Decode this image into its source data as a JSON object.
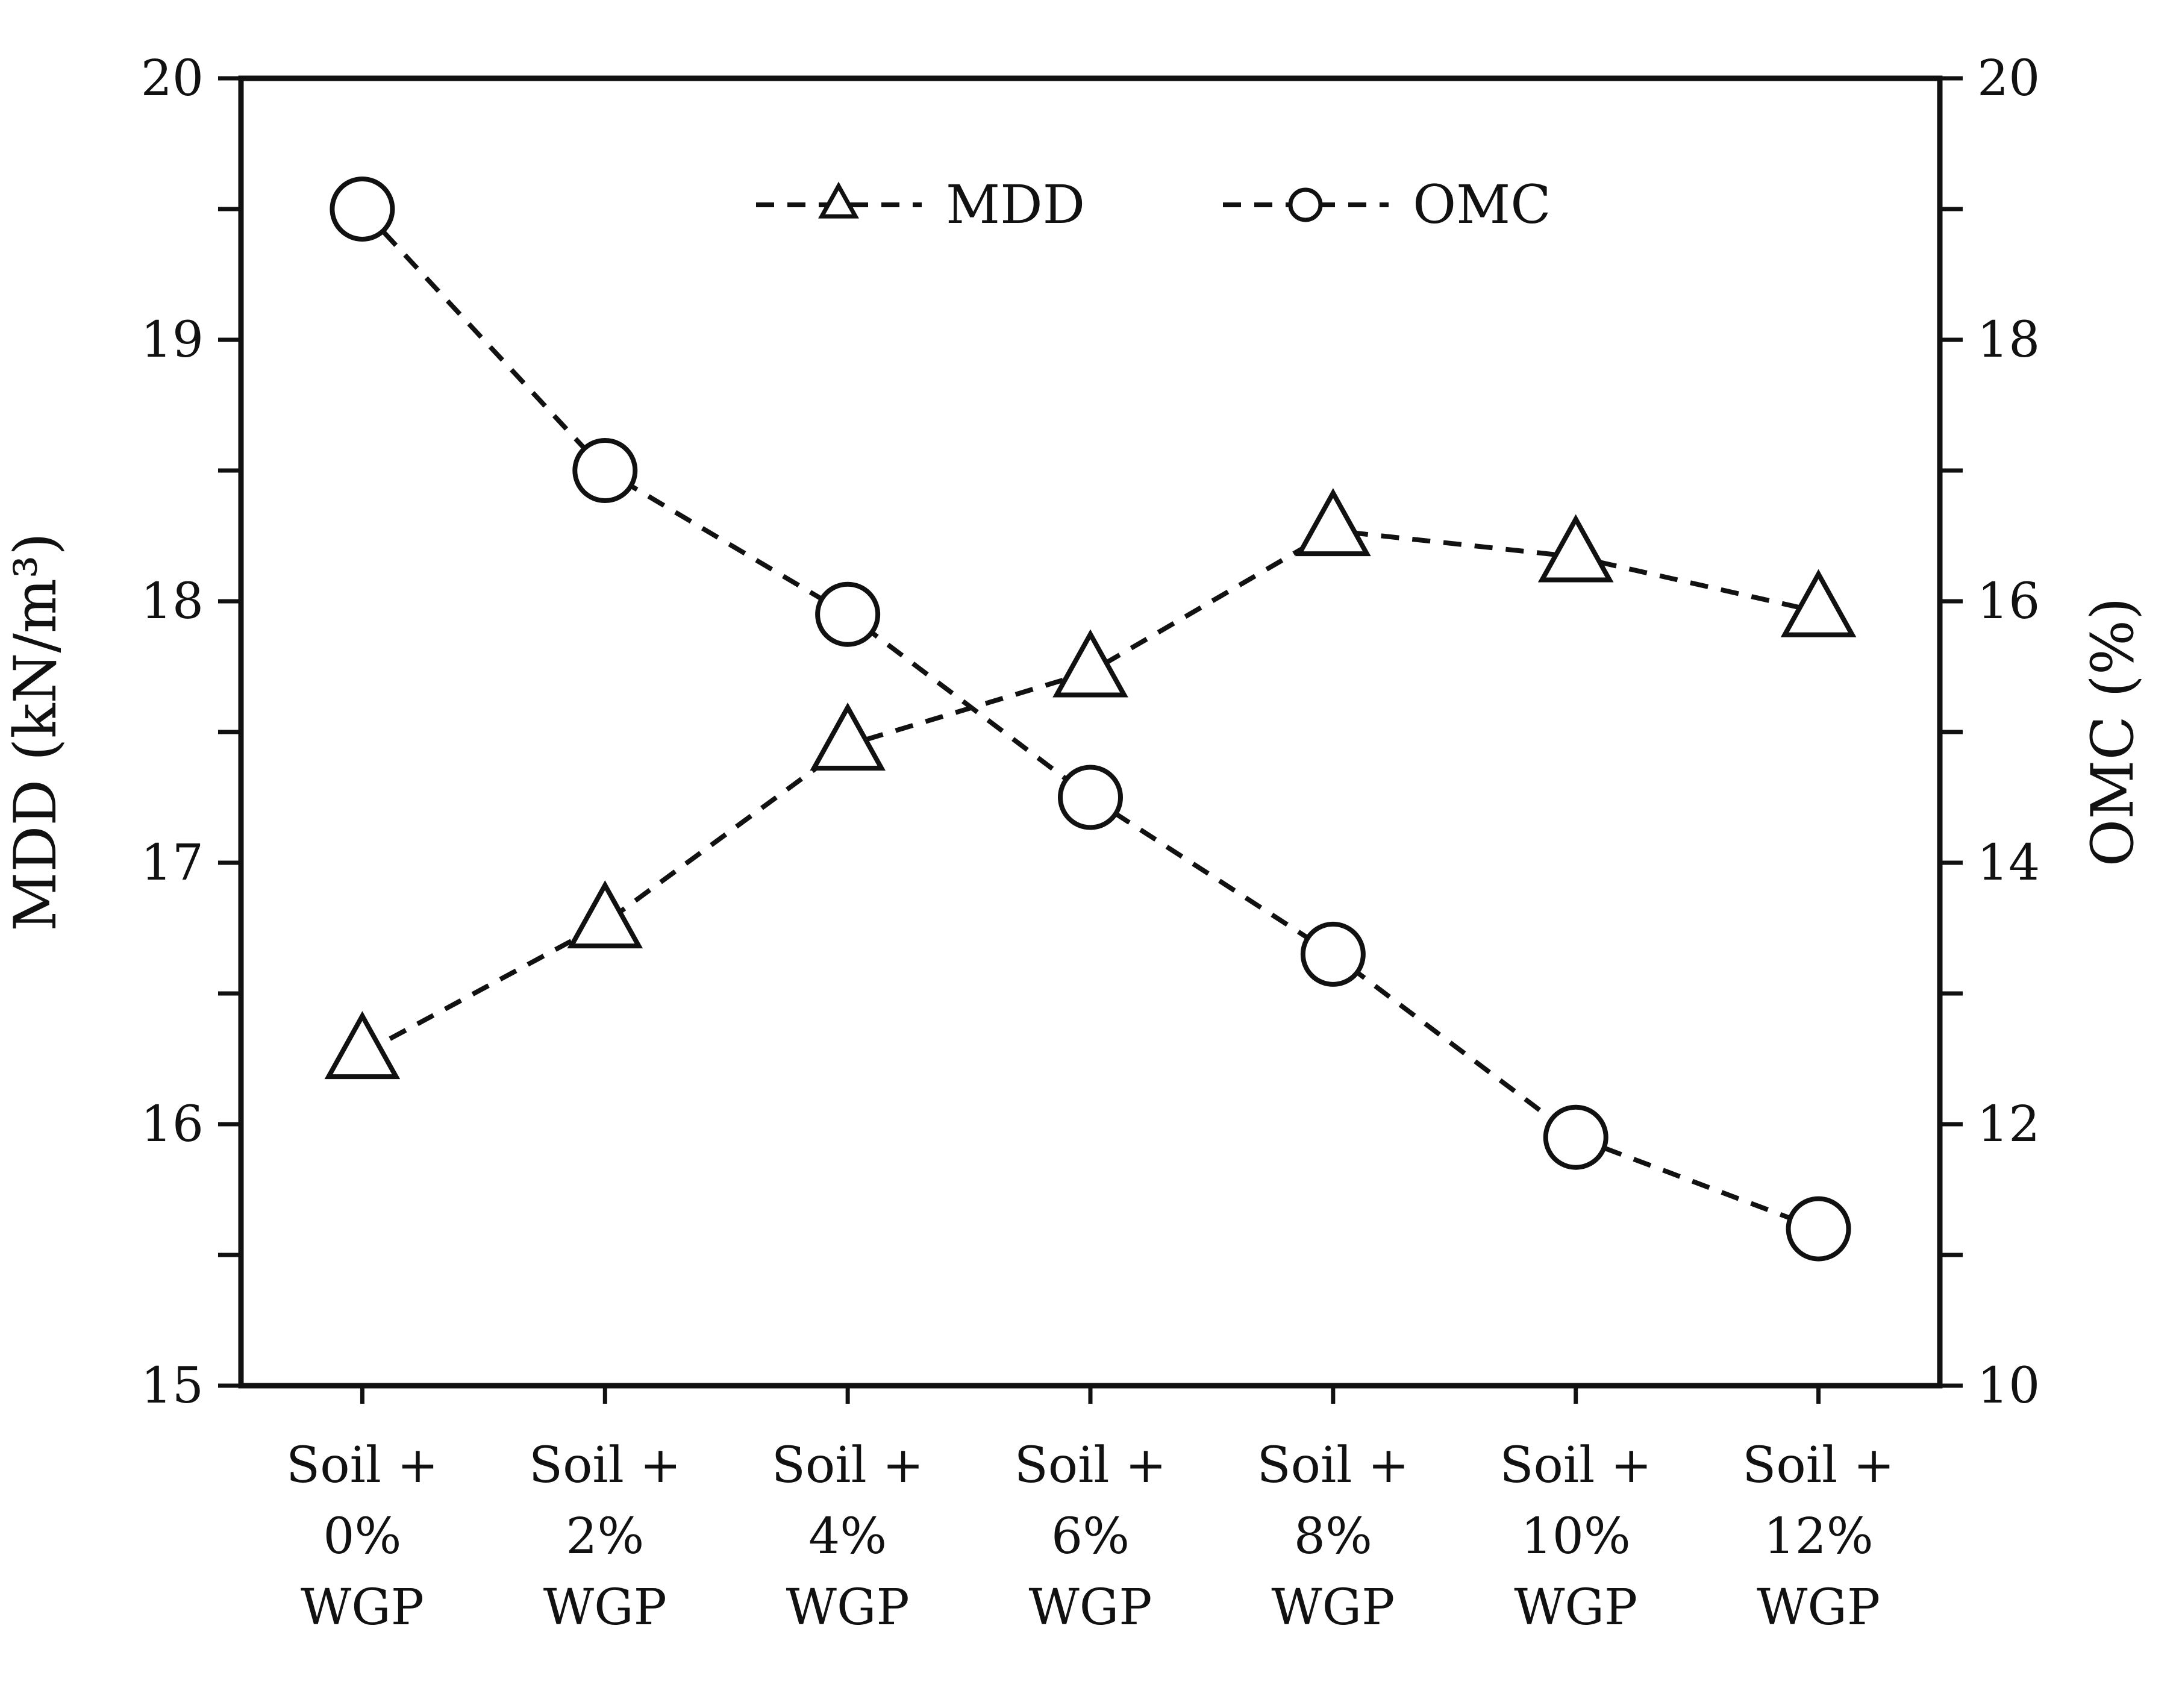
{
  "chart_data": {
    "type": "line",
    "categories": [
      [
        "Soil +",
        "0%",
        "WGP"
      ],
      [
        "Soil +",
        "2%",
        "WGP"
      ],
      [
        "Soil +",
        "4%",
        "WGP"
      ],
      [
        "Soil +",
        "6%",
        "WGP"
      ],
      [
        "Soil +",
        "8%",
        "WGP"
      ],
      [
        "Soil +",
        "10%",
        "WGP"
      ],
      [
        "Soil +",
        "12%",
        "WGP"
      ]
    ],
    "series": [
      {
        "name": "MDD",
        "axis": "left",
        "marker": "triangle",
        "line_style": "dashed",
        "values": [
          16.27,
          16.77,
          17.45,
          17.73,
          18.27,
          18.17,
          17.96
        ]
      },
      {
        "name": "OMC",
        "axis": "right",
        "marker": "circle",
        "line_style": "dashed",
        "values": [
          19.0,
          17.0,
          15.9,
          14.5,
          13.3,
          11.9,
          11.2
        ]
      }
    ],
    "ylabel": "MDD (kN/m³)",
    "y2label": "OMC (%)",
    "ylim": [
      15,
      20
    ],
    "y2lim": [
      10,
      20
    ],
    "yticks": [
      15,
      16,
      17,
      18,
      19,
      20
    ],
    "y2ticks": [
      10,
      12,
      14,
      16,
      18,
      20
    ],
    "grid": false,
    "legend_position": "top-center",
    "colors": {
      "line": "#111111",
      "background": "#ffffff"
    }
  }
}
